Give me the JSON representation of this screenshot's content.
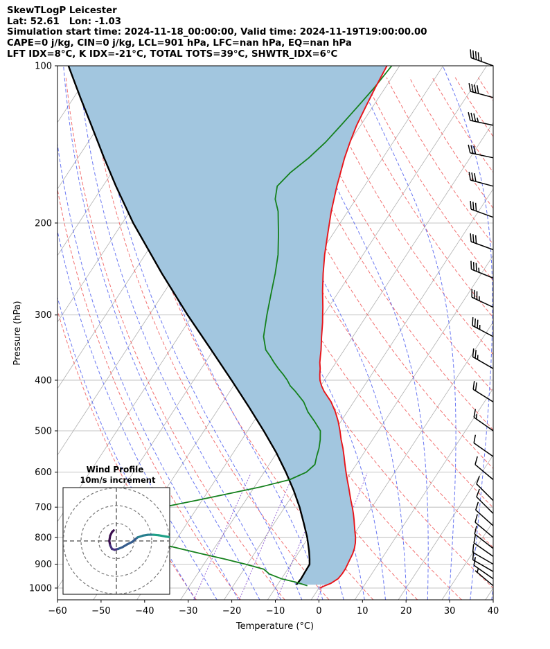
{
  "header": {
    "title": "SkewTLogP Leicester",
    "location": "Lat: 52.61   Lon: -1.03",
    "times": "Simulation start time: 2024-11-18_00:00:00, Valid time: 2024-11-19T19:00:00.00",
    "indices1": "CAPE=0 j/kg, CIN=0 j/kg, LCL=901 hPa, LFC=nan hPa, EQ=nan hPa",
    "indices2": "LFT IDX=8°C, K IDX=-21°C, TOTAL TOTS=39°C, SHWTR_IDX=6°C"
  },
  "chart_data": {
    "type": "skewt-logp",
    "xlabel": "Temperature (°C)",
    "ylabel": "Pressure (hPa)",
    "xlim": [
      -60,
      40
    ],
    "ylim": [
      1050,
      100
    ],
    "x_ticks": [
      "−60",
      "−50",
      "−40",
      "−30",
      "−20",
      "−10",
      "0",
      "10",
      "20",
      "30",
      "40"
    ],
    "y_ticks": [
      "100",
      "200",
      "300",
      "400",
      "500",
      "600",
      "700",
      "800",
      "900",
      "1000"
    ],
    "grid": true,
    "colors": {
      "temperature": "#e8141a",
      "dewpoint": "#14801c",
      "parcel": "#000000",
      "cape_cin_shading": "#a2c6df",
      "dry_adiabats": "#f05858",
      "moist_adiabats": "#4e5ef0",
      "mixing_ratio_lines": "#7a3fc8",
      "isotherms": "#b0b0b0"
    },
    "temperature_profile": {
      "p": [
        1000,
        990,
        980,
        960,
        940,
        920,
        900,
        880,
        860,
        840,
        820,
        800,
        780,
        760,
        740,
        720,
        700,
        680,
        660,
        640,
        620,
        600,
        580,
        560,
        540,
        520,
        500,
        480,
        460,
        440,
        420,
        410,
        400,
        390,
        380,
        370,
        360,
        350,
        330,
        310,
        300,
        290,
        270,
        250,
        230,
        210,
        190,
        170,
        150,
        140,
        130,
        120,
        110,
        100
      ],
      "t": [
        0.2,
        1.0,
        2.0,
        3.0,
        3.2,
        3.2,
        3.0,
        2.8,
        2.6,
        2.2,
        1.6,
        0.8,
        -0.2,
        -1.2,
        -2.2,
        -3.3,
        -4.5,
        -5.8,
        -7.1,
        -8.4,
        -9.8,
        -11.2,
        -12.6,
        -14.0,
        -15.5,
        -17.2,
        -18.8,
        -20.6,
        -22.7,
        -25.2,
        -28.4,
        -29.8,
        -31.0,
        -31.9,
        -32.7,
        -33.7,
        -34.5,
        -35.3,
        -37.2,
        -39.1,
        -40.2,
        -41.3,
        -43.8,
        -46.3,
        -48.8,
        -51.2,
        -53.8,
        -56.3,
        -58.8,
        -59.9,
        -60.9,
        -61.6,
        -62.3,
        -62.9
      ]
    },
    "dewpoint_profile": {
      "p": [
        990,
        975,
        960,
        940,
        920,
        900,
        880,
        860,
        840,
        820,
        800,
        780,
        760,
        740,
        720,
        700,
        680,
        660,
        640,
        620,
        600,
        580,
        560,
        540,
        520,
        500,
        480,
        460,
        440,
        420,
        410,
        400,
        390,
        380,
        370,
        360,
        350,
        330,
        300,
        270,
        250,
        230,
        210,
        190,
        180,
        170,
        160,
        150,
        140,
        130,
        120,
        110,
        100
      ],
      "td": [
        -3.0,
        -6.0,
        -10.0,
        -13.5,
        -15.5,
        -20.5,
        -26.0,
        -32.0,
        -38.0,
        -44.0,
        -48.5,
        -51.0,
        -53.0,
        -54.0,
        -52.5,
        -48.0,
        -41.5,
        -35.0,
        -28.5,
        -23.0,
        -20.3,
        -19.5,
        -20.3,
        -21.0,
        -22.0,
        -23.3,
        -26.0,
        -29.0,
        -31.5,
        -35.0,
        -37.0,
        -38.5,
        -40.3,
        -42.3,
        -44.2,
        -46.0,
        -48.0,
        -50.5,
        -53.0,
        -55.5,
        -57.3,
        -59.5,
        -62.5,
        -66.0,
        -68.5,
        -70.0,
        -69.0,
        -67.0,
        -65.5,
        -64.5,
        -63.5,
        -62.5,
        -61.8
      ]
    },
    "parcel_profile": {
      "p": [
        985,
        960,
        930,
        901,
        880,
        850,
        800,
        750,
        700,
        650,
        600,
        550,
        500,
        450,
        400,
        350,
        300,
        250,
        200,
        170,
        150,
        130,
        115,
        100
      ],
      "t": [
        -5.7,
        -5.5,
        -5.6,
        -5.7,
        -6.5,
        -7.8,
        -10.3,
        -13.3,
        -16.6,
        -20.5,
        -25.0,
        -30.2,
        -36.3,
        -43.3,
        -51.3,
        -60.5,
        -71.2,
        -83.3,
        -97.5,
        -107.0,
        -114.0,
        -121.8,
        -128.5,
        -136.0
      ]
    },
    "wind_barbs": {
      "p": [
        100,
        115,
        130,
        150,
        170,
        195,
        225,
        255,
        290,
        330,
        380,
        440,
        500,
        560,
        620,
        680,
        720,
        760,
        800,
        840,
        870,
        900,
        930,
        960,
        990
      ],
      "dir": [
        290,
        285,
        282,
        282,
        285,
        290,
        290,
        292,
        295,
        298,
        300,
        302,
        305,
        305,
        310,
        315,
        315,
        312,
        310,
        308,
        305,
        300,
        300,
        305,
        310
      ],
      "spd": [
        45,
        40,
        35,
        30,
        30,
        30,
        30,
        35,
        35,
        35,
        25,
        20,
        15,
        10,
        10,
        10,
        10,
        10,
        10,
        10,
        10,
        10,
        10,
        10,
        5
      ]
    },
    "hodograph": {
      "title": "Wind Profile",
      "subtitle": "10m/s increment",
      "ring_step_ms": 10,
      "u": [
        -1.5,
        -2.5,
        -3.5,
        -4.0,
        -3.5,
        -2.5,
        -1.0,
        1.0,
        3.5,
        6.0,
        9.0,
        12.0,
        15.0,
        18.0,
        21.0,
        24.0,
        28.0,
        31.0
      ],
      "v": [
        6.0,
        5.0,
        3.0,
        0.0,
        -2.5,
        -4.5,
        -5.0,
        -4.5,
        -3.5,
        -2.0,
        -0.5,
        2.0,
        3.0,
        3.5,
        3.5,
        3.2,
        2.5,
        2.0
      ],
      "colors": [
        "#3b0f4f",
        "#46327e",
        "#365c8d",
        "#277f8e",
        "#1fa187"
      ]
    }
  }
}
